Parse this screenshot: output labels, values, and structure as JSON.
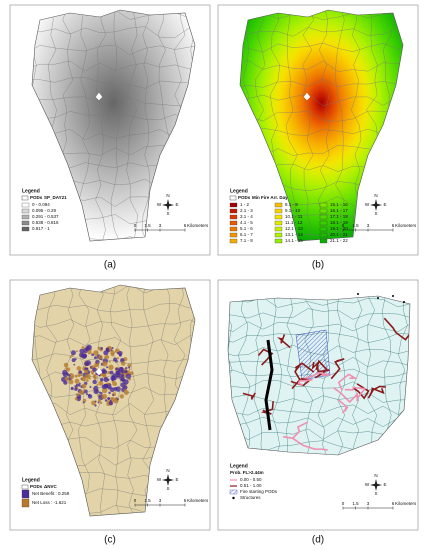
{
  "panels": [
    {
      "label": "(a)",
      "map": "gray",
      "legend": {
        "title": "Legend",
        "pods": "PODs",
        "field": "SP_DAY21",
        "columns": 1,
        "items": [
          {
            "label": "0 - 0.094",
            "color": "#ffffff"
          },
          {
            "label": "0.095 - 0.29",
            "color": "#d9d9d9"
          },
          {
            "label": "0.291 - 0.537",
            "color": "#b3b3b3"
          },
          {
            "label": "0.538 - 0.816",
            "color": "#8c8c8c"
          },
          {
            "label": "0.817 - 1",
            "color": "#666666"
          }
        ]
      }
    },
    {
      "label": "(b)",
      "map": "fire",
      "legend": {
        "title": "Legend",
        "pods": "PODs",
        "field": "Min Fire Arr. Day",
        "columns": 3,
        "items": [
          {
            "label": "1 - 2",
            "color": "#a50000"
          },
          {
            "label": "2.1 - 3",
            "color": "#c41a00"
          },
          {
            "label": "3.1 - 4",
            "color": "#dc3a00"
          },
          {
            "label": "4.1 - 5",
            "color": "#e85a00"
          },
          {
            "label": "5.1 - 6",
            "color": "#ef7a00"
          },
          {
            "label": "6.1 - 7",
            "color": "#f39400"
          },
          {
            "label": "7.1 - 8",
            "color": "#f6ac00"
          },
          {
            "label": "8.1 - 9",
            "color": "#f8c000"
          },
          {
            "label": "9.1 - 10",
            "color": "#f9d400"
          },
          {
            "label": "10.1 - 11",
            "color": "#f2e400"
          },
          {
            "label": "11.1 - 12",
            "color": "#e0ec00"
          },
          {
            "label": "12.1 - 13",
            "color": "#c8f000"
          },
          {
            "label": "13.1 - 14",
            "color": "#b0f000"
          },
          {
            "label": "14.1 - 15",
            "color": "#98ec00"
          },
          {
            "label": "15.1 - 16",
            "color": "#80e600"
          },
          {
            "label": "16.1 - 17",
            "color": "#68e000"
          },
          {
            "label": "17.1 - 18",
            "color": "#50d800"
          },
          {
            "label": "18.1 - 19",
            "color": "#3ccf00"
          },
          {
            "label": "19.1 - 20",
            "color": "#2ac500"
          },
          {
            "label": "20.1 - 21",
            "color": "#1aba00"
          },
          {
            "label": "21.1 - 22",
            "color": "#0aae00"
          }
        ]
      }
    },
    {
      "label": "(c)",
      "map": "nvc",
      "legend": {
        "title": "Legend",
        "pods": "PODs",
        "field": "ΔNVC",
        "columns": 1,
        "items": [
          {
            "label": "Net Benefit : 0.259",
            "color": "#4b2a9a"
          },
          {
            "label": "Net Loss : -1.621",
            "color": "#b87a2a"
          }
        ]
      }
    },
    {
      "label": "(d)",
      "map": "prob",
      "legend": {
        "title": "Legend",
        "field": "Prob. FL>2.44m",
        "columns": 1,
        "items": [
          {
            "label": "0.00 - 0.50",
            "color": "#f08fb0",
            "symbol": "line"
          },
          {
            "label": "0.51 - 1.00",
            "color": "#8b1a1a",
            "symbol": "line"
          },
          {
            "label": "Fire starting PODs",
            "color": "#3b4cc0",
            "symbol": "hatch"
          },
          {
            "label": "Structures",
            "color": "#000000",
            "symbol": "dot"
          }
        ]
      }
    }
  ],
  "compass": [
    "N",
    "E",
    "S",
    "W"
  ],
  "scale": {
    "ticks": [
      0,
      1.5,
      3,
      6
    ],
    "unit": "Kilometers"
  }
}
